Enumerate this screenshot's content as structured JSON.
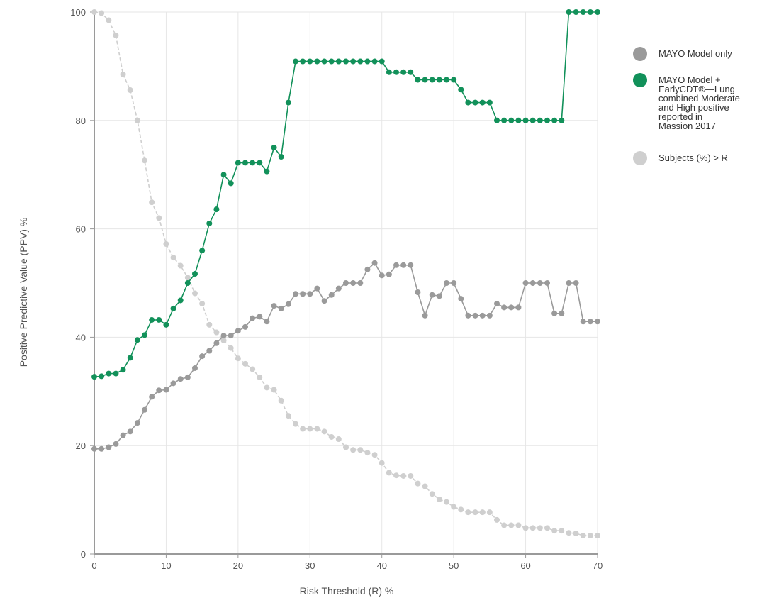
{
  "chart_data": {
    "type": "line",
    "title": "",
    "xlabel": "Risk Threshold (R) %",
    "ylabel": "Positive Predictive Value (PPV) %",
    "xlim": [
      0,
      70
    ],
    "ylim": [
      0,
      100
    ],
    "xticks": [
      0,
      10,
      20,
      30,
      40,
      50,
      60,
      70
    ],
    "yticks": [
      0,
      20,
      40,
      60,
      80,
      100
    ],
    "grid": true,
    "legend_position": "right",
    "series": [
      {
        "name": "MAYO Model only",
        "color": "#9a9a9a",
        "x": [
          0,
          1,
          2,
          3,
          4,
          5,
          6,
          7,
          8,
          9,
          10,
          11,
          12,
          13,
          14,
          15,
          16,
          17,
          18,
          19,
          20,
          21,
          22,
          23,
          24,
          25,
          26,
          27,
          28,
          29,
          30,
          31,
          32,
          33,
          34,
          35,
          36,
          37,
          38,
          39,
          40,
          41,
          42,
          43,
          44,
          45,
          46,
          47,
          48,
          49,
          50,
          51,
          52,
          53,
          54,
          55,
          56,
          57,
          58,
          59,
          60,
          61,
          62,
          63,
          64,
          65,
          66,
          67,
          68,
          69,
          70
        ],
        "y": [
          19.4,
          19.4,
          19.7,
          20.3,
          21.9,
          22.6,
          24.2,
          26.6,
          29.0,
          30.2,
          30.3,
          31.5,
          32.3,
          32.6,
          34.3,
          36.5,
          37.5,
          38.9,
          40.3,
          40.3,
          41.2,
          41.9,
          43.5,
          43.8,
          42.9,
          45.8,
          45.3,
          46.1,
          48.0,
          48.0,
          48.0,
          49.0,
          46.7,
          47.8,
          49.0,
          50.0,
          50.0,
          50.0,
          52.5,
          53.7,
          51.4,
          51.6,
          53.3,
          53.3,
          53.3,
          48.3,
          44.0,
          47.8,
          47.6,
          50.0,
          50.0,
          47.1,
          44.0,
          44.0,
          44.0,
          44.0,
          46.2,
          45.5,
          45.5,
          45.5,
          50.0,
          50.0,
          50.0,
          50.0,
          44.4,
          44.4,
          50.0,
          50.0,
          42.9,
          42.9,
          42.9
        ]
      },
      {
        "name": "MAYO Model + EarlyCDT®—Lung combined Moderate and High positive reported in Massion 2017",
        "color": "#12915a",
        "x": [
          0,
          1,
          2,
          3,
          4,
          5,
          6,
          7,
          8,
          9,
          10,
          11,
          12,
          13,
          14,
          15,
          16,
          17,
          18,
          19,
          20,
          21,
          22,
          23,
          24,
          25,
          26,
          27,
          28,
          29,
          30,
          31,
          32,
          33,
          34,
          35,
          36,
          37,
          38,
          39,
          40,
          41,
          42,
          43,
          44,
          45,
          46,
          47,
          48,
          49,
          50,
          51,
          52,
          53,
          54,
          55,
          56,
          57,
          58,
          59,
          60,
          61,
          62,
          63,
          64,
          65,
          66,
          67,
          68,
          69,
          70
        ],
        "y": [
          32.7,
          32.8,
          33.3,
          33.3,
          34.0,
          36.2,
          39.5,
          40.4,
          43.2,
          43.2,
          42.3,
          45.3,
          46.8,
          50.0,
          51.7,
          56.0,
          61.0,
          63.6,
          70.0,
          68.4,
          72.2,
          72.2,
          72.2,
          72.2,
          70.6,
          75.0,
          73.3,
          83.3,
          90.9,
          90.9,
          90.9,
          90.9,
          90.9,
          90.9,
          90.9,
          90.9,
          90.9,
          90.9,
          90.9,
          90.9,
          90.9,
          88.9,
          88.9,
          88.9,
          88.9,
          87.5,
          87.5,
          87.5,
          87.5,
          87.5,
          87.5,
          85.7,
          83.3,
          83.3,
          83.3,
          83.3,
          80.0,
          80.0,
          80.0,
          80.0,
          80.0,
          80.0,
          80.0,
          80.0,
          80.0,
          80.0,
          100,
          100,
          100,
          100,
          100
        ]
      },
      {
        "name": "Subjects (%) > R",
        "color": "#cfcfcf",
        "x": [
          0,
          1,
          2,
          3,
          4,
          5,
          6,
          7,
          8,
          9,
          10,
          11,
          12,
          13,
          14,
          15,
          16,
          17,
          18,
          19,
          20,
          21,
          22,
          23,
          24,
          25,
          26,
          27,
          28,
          29,
          30,
          31,
          32,
          33,
          34,
          35,
          36,
          37,
          38,
          39,
          40,
          41,
          42,
          43,
          44,
          45,
          46,
          47,
          48,
          49,
          50,
          51,
          52,
          53,
          54,
          55,
          56,
          57,
          58,
          59,
          60,
          61,
          62,
          63,
          64,
          65,
          66,
          67,
          68,
          69,
          70
        ],
        "y": [
          100,
          99.8,
          98.5,
          95.7,
          88.5,
          85.6,
          80.0,
          72.6,
          64.9,
          62.0,
          57.2,
          54.7,
          53.2,
          51.0,
          48.1,
          46.2,
          42.3,
          40.9,
          39.4,
          38.0,
          36.1,
          35.1,
          34.1,
          32.6,
          30.7,
          30.3,
          28.3,
          25.5,
          24.0,
          23.1,
          23.1,
          23.1,
          22.6,
          21.6,
          21.2,
          19.7,
          19.2,
          19.2,
          18.7,
          18.3,
          16.8,
          15.0,
          14.5,
          14.4,
          14.4,
          13.0,
          12.5,
          11.1,
          10.1,
          9.6,
          8.7,
          8.2,
          7.7,
          7.7,
          7.7,
          7.7,
          6.3,
          5.3,
          5.3,
          5.3,
          4.8,
          4.8,
          4.8,
          4.8,
          4.3,
          4.3,
          3.9,
          3.8,
          3.4,
          3.4,
          3.4
        ]
      }
    ]
  }
}
